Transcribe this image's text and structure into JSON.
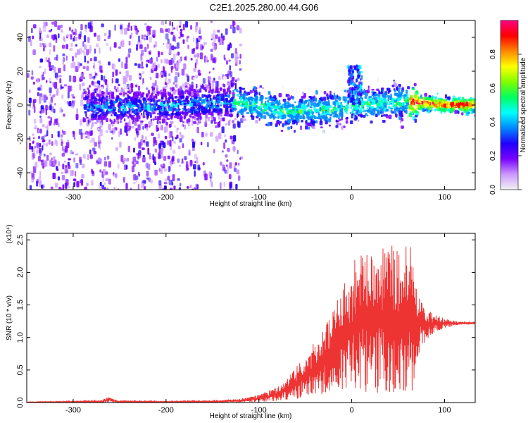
{
  "title": "C2E1.2025.280.00.44.G06",
  "chart_data": [
    {
      "type": "heatmap",
      "title": "C2E1.2025.280.00.44.G06",
      "xlabel": "Height of straight line (km)",
      "ylabel": "Frequency (Hz)",
      "xlim": [
        -350,
        133
      ],
      "ylim": [
        -50,
        50
      ],
      "xticks": [
        -300,
        -200,
        -100,
        0,
        100
      ],
      "yticks": [
        -40,
        -20,
        0,
        20,
        40
      ],
      "colorbar": {
        "label": "Normalized spectral amplitude",
        "range": [
          0,
          1
        ],
        "ticks": [
          0.0,
          0.2,
          0.4,
          0.6,
          0.8
        ],
        "colors": [
          "#f2f2f2",
          "#cc99ff",
          "#7a00ff",
          "#2000ff",
          "#0088ff",
          "#00ffff",
          "#00ff60",
          "#80ff00",
          "#ffff00",
          "#ff8800",
          "#ff0000",
          "#ff0080"
        ]
      },
      "centerline": [
        {
          "x": -290,
          "y": 0
        },
        {
          "x": -200,
          "y": 0
        },
        {
          "x": -130,
          "y": 3
        },
        {
          "x": -70,
          "y": -3
        },
        {
          "x": -30,
          "y": -2
        },
        {
          "x": 0,
          "y": 1
        },
        {
          "x": 60,
          "y": 3
        },
        {
          "x": 100,
          "y": 1
        },
        {
          "x": 133,
          "y": 1
        }
      ]
    },
    {
      "type": "line",
      "xlabel": "Height of straight line (km)",
      "ylabel": "SNR (10 * v/v)",
      "yscale_label": "(x10⁴)",
      "xlim": [
        -350,
        133
      ],
      "ylim": [
        0,
        2.6
      ],
      "xticks": [
        -300,
        -200,
        -100,
        0,
        100
      ],
      "yticks": [
        "0.0",
        "0.5",
        "1.0",
        "1.5",
        "2.0",
        "2.5"
      ],
      "color": "#ee3333",
      "envelope": {
        "x": [
          -350,
          -270,
          -262,
          -252,
          -200,
          -150,
          -120,
          -100,
          -80,
          -60,
          -50,
          -40,
          -30,
          -20,
          -10,
          0,
          10,
          20,
          30,
          40,
          50,
          60,
          65,
          70,
          75,
          80,
          90,
          100,
          110,
          120,
          133
        ],
        "upper": [
          0.01,
          0.03,
          0.09,
          0.03,
          0.02,
          0.03,
          0.06,
          0.12,
          0.24,
          0.55,
          0.72,
          0.95,
          1.15,
          1.4,
          1.8,
          2.1,
          2.4,
          2.45,
          2.42,
          2.5,
          2.38,
          2.5,
          2.35,
          1.8,
          1.6,
          1.45,
          1.35,
          1.3,
          1.26,
          1.24,
          1.23
        ],
        "lower": [
          0.0,
          0.0,
          0.0,
          0.0,
          0.0,
          0.0,
          0.0,
          0.01,
          0.02,
          0.05,
          0.07,
          0.1,
          0.13,
          0.17,
          0.2,
          0.17,
          0.14,
          0.12,
          0.13,
          0.12,
          0.1,
          0.08,
          0.08,
          0.6,
          0.85,
          0.95,
          1.08,
          1.14,
          1.18,
          1.2,
          1.21
        ]
      }
    }
  ]
}
